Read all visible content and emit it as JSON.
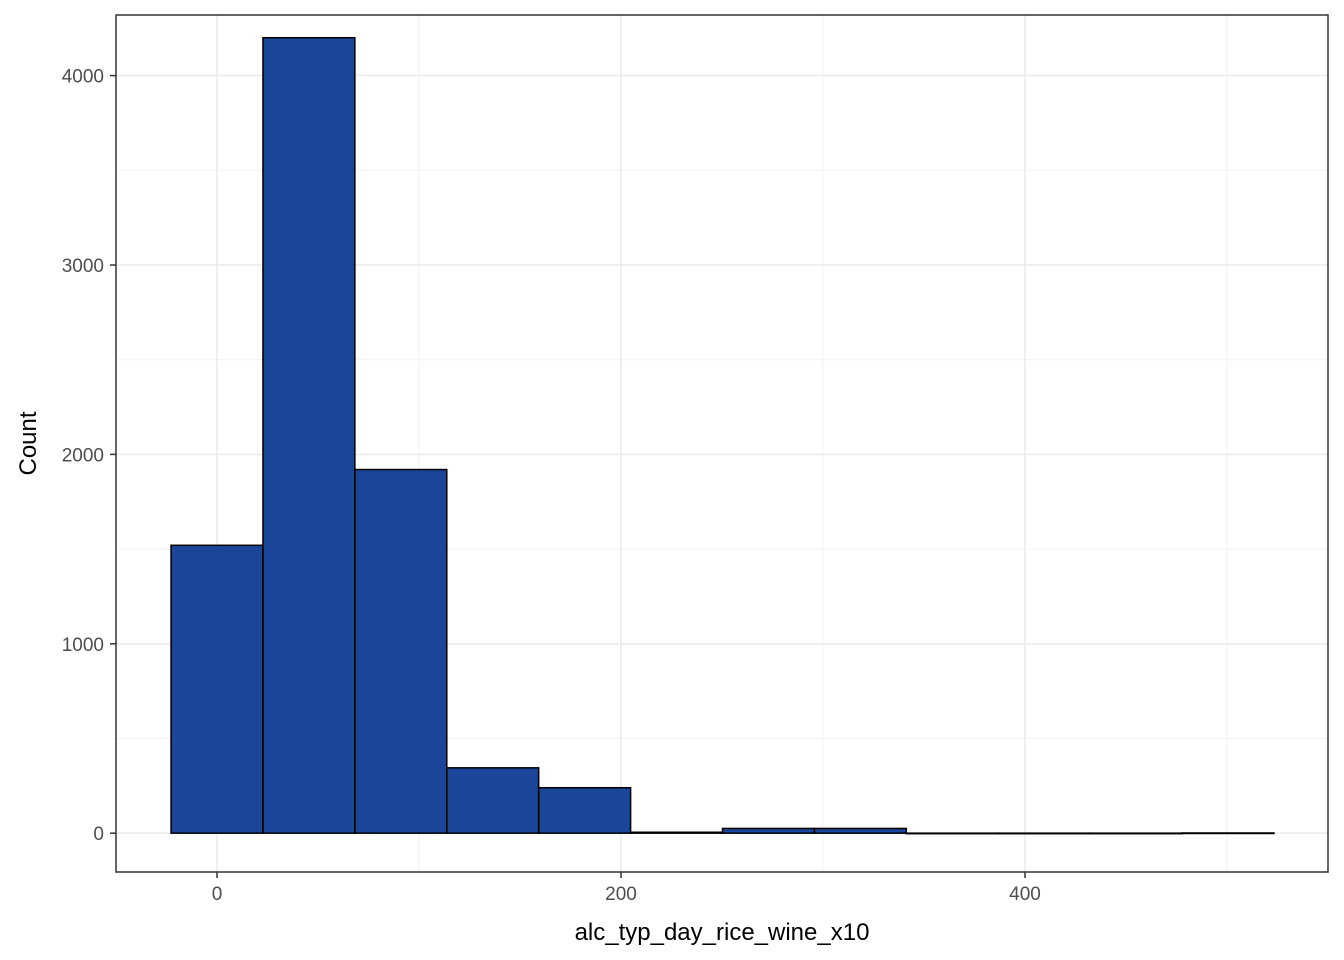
{
  "chart_data": {
    "type": "bar",
    "subtype": "histogram",
    "xlabel": "alc_typ_day_rice_wine_x10",
    "ylabel": "Count",
    "xlim": [
      -50,
      550
    ],
    "ylim": [
      -205,
      4320
    ],
    "x_ticks": [
      0,
      200,
      400
    ],
    "y_ticks": [
      0,
      1000,
      2000,
      3000,
      4000
    ],
    "x_tick_labels": [
      "0",
      "200",
      "400"
    ],
    "y_tick_labels": [
      "0",
      "1000",
      "2000",
      "3000",
      "4000"
    ],
    "grid": true,
    "legend": "none",
    "bin_width": 45.5,
    "bins": [
      {
        "start": -22.75,
        "end": 22.75,
        "count": 1520
      },
      {
        "start": 22.75,
        "end": 68.25,
        "count": 4200
      },
      {
        "start": 68.25,
        "end": 113.75,
        "count": 1920
      },
      {
        "start": 113.75,
        "end": 159.25,
        "count": 345
      },
      {
        "start": 159.25,
        "end": 204.75,
        "count": 240
      },
      {
        "start": 204.75,
        "end": 250.25,
        "count": 5
      },
      {
        "start": 250.25,
        "end": 295.75,
        "count": 25
      },
      {
        "start": 295.75,
        "end": 341.25,
        "count": 25
      },
      {
        "start": 341.25,
        "end": 386.75,
        "count": 0
      },
      {
        "start": 386.75,
        "end": 432.25,
        "count": 0
      },
      {
        "start": 432.25,
        "end": 477.75,
        "count": 0
      },
      {
        "start": 477.75,
        "end": 523.25,
        "count": 1
      }
    ]
  },
  "colors": {
    "bar_fill": "#1A4599",
    "bar_stroke": "#000000",
    "grid_major": "#EBEBEB",
    "grid_minor": "#F2F2F2",
    "panel_border": "#333333"
  }
}
